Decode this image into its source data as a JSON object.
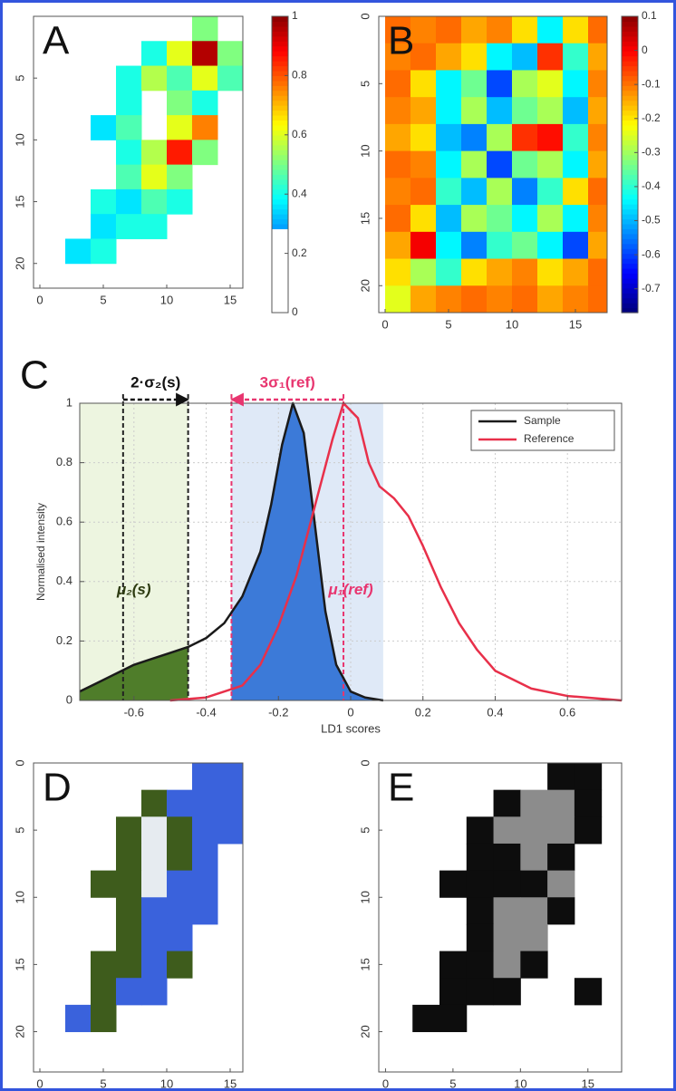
{
  "chart_data": [
    {
      "type": "heatmap",
      "label": "A",
      "colormap": "jet",
      "clim": [
        0,
        1
      ],
      "colorbar_ticks": [
        0,
        0.2,
        0.4,
        0.6,
        0.8,
        1
      ],
      "colorbar_white_below": 0.27,
      "x": [
        1,
        3,
        5,
        7,
        9,
        11,
        13,
        15,
        17
      ],
      "y": [
        1,
        3,
        5,
        7,
        9,
        11,
        13,
        15,
        17,
        19,
        21
      ],
      "xlim": [
        -0.5,
        16
      ],
      "ylim": [
        0,
        22
      ],
      "xticks": [
        0,
        5,
        10,
        15
      ],
      "yticks": [
        5,
        10,
        15,
        20
      ],
      "values": [
        [
          null,
          null,
          null,
          null,
          null,
          null,
          0.5,
          null,
          null
        ],
        [
          null,
          null,
          null,
          null,
          0.4,
          0.6,
          0.95,
          0.5,
          null
        ],
        [
          null,
          null,
          null,
          0.4,
          0.55,
          0.45,
          0.6,
          0.45,
          null
        ],
        [
          null,
          null,
          null,
          0.4,
          null,
          0.5,
          0.4,
          null,
          null
        ],
        [
          null,
          null,
          0.35,
          0.45,
          null,
          0.6,
          0.75,
          null,
          null
        ],
        [
          null,
          null,
          null,
          0.4,
          0.55,
          0.85,
          0.5,
          null,
          null
        ],
        [
          null,
          null,
          null,
          0.45,
          0.6,
          0.5,
          null,
          null,
          null
        ],
        [
          null,
          null,
          0.4,
          0.35,
          0.45,
          0.4,
          null,
          null,
          null
        ],
        [
          null,
          null,
          0.35,
          0.4,
          0.4,
          null,
          null,
          null,
          null
        ],
        [
          null,
          0.35,
          0.4,
          null,
          null,
          null,
          null,
          null,
          null
        ],
        [
          null,
          null,
          null,
          null,
          null,
          null,
          null,
          null,
          null
        ]
      ]
    },
    {
      "type": "heatmap",
      "label": "B",
      "colormap": "jet",
      "clim": [
        -0.77,
        0.1
      ],
      "colorbar_ticks": [
        -0.7,
        -0.6,
        -0.5,
        -0.4,
        -0.3,
        -0.2,
        -0.1,
        0,
        0.1
      ],
      "x": [
        1,
        3,
        5,
        7,
        9,
        11,
        13,
        15,
        17
      ],
      "y": [
        1,
        3,
        5,
        7,
        9,
        11,
        13,
        15,
        17,
        19,
        21
      ],
      "xlim": [
        -0.5,
        17.5
      ],
      "ylim": [
        0,
        22
      ],
      "xticks": [
        0,
        5,
        10,
        15
      ],
      "yticks": [
        0,
        5,
        10,
        15,
        20
      ],
      "values": [
        [
          -0.1,
          -0.12,
          -0.1,
          -0.15,
          -0.12,
          -0.2,
          -0.45,
          -0.2,
          -0.1
        ],
        [
          -0.12,
          -0.1,
          -0.15,
          -0.2,
          -0.45,
          -0.5,
          -0.05,
          -0.4,
          -0.15
        ],
        [
          -0.1,
          -0.2,
          -0.45,
          -0.35,
          -0.6,
          -0.3,
          -0.25,
          -0.45,
          -0.12
        ],
        [
          -0.12,
          -0.15,
          -0.45,
          -0.3,
          -0.5,
          -0.35,
          -0.3,
          -0.5,
          -0.15
        ],
        [
          -0.15,
          -0.2,
          -0.5,
          -0.55,
          -0.3,
          -0.05,
          -0.02,
          -0.4,
          -0.12
        ],
        [
          -0.1,
          -0.12,
          -0.45,
          -0.3,
          -0.6,
          -0.35,
          -0.3,
          -0.45,
          -0.15
        ],
        [
          -0.12,
          -0.1,
          -0.4,
          -0.5,
          -0.3,
          -0.55,
          -0.4,
          -0.2,
          -0.1
        ],
        [
          -0.1,
          -0.2,
          -0.5,
          -0.3,
          -0.35,
          -0.45,
          -0.3,
          -0.45,
          -0.12
        ],
        [
          -0.15,
          0,
          -0.45,
          -0.55,
          -0.4,
          -0.35,
          -0.45,
          -0.6,
          -0.15
        ],
        [
          -0.2,
          -0.3,
          -0.4,
          -0.2,
          -0.15,
          -0.12,
          -0.2,
          -0.15,
          -0.1
        ],
        [
          -0.25,
          -0.15,
          -0.12,
          -0.1,
          -0.12,
          -0.1,
          -0.15,
          -0.12,
          -0.1
        ]
      ]
    },
    {
      "type": "line",
      "label": "C",
      "xlabel": "LD1 scores",
      "ylabel": "Normalised intensity",
      "xlim": [
        -0.75,
        0.75
      ],
      "ylim": [
        0,
        1
      ],
      "xticks": [
        -0.6,
        -0.4,
        -0.2,
        0,
        0.2,
        0.4,
        0.6
      ],
      "yticks": [
        0,
        0.2,
        0.4,
        0.6,
        0.8,
        1
      ],
      "grid": true,
      "legend": "upper right",
      "regions": [
        {
          "from": -0.75,
          "to": -0.45,
          "color": "#edf5e0",
          "fill_color": "#4f7d2a"
        },
        {
          "from": -0.33,
          "to": 0.09,
          "color": "#dfe9f7",
          "fill_color": "#3c7ad8"
        }
      ],
      "reference_lines": [
        {
          "x": -0.63,
          "color": "#222222"
        },
        {
          "x": -0.45,
          "color": "#222222"
        },
        {
          "x": -0.33,
          "color": "#e8356f"
        },
        {
          "x": -0.02,
          "color": "#e8356f"
        }
      ],
      "arrows": [
        {
          "text": "2·σ₂(s)",
          "from": -0.63,
          "to": -0.45,
          "color": "#111111"
        },
        {
          "text": "3σ₁(ref)",
          "from": -0.02,
          "to": -0.33,
          "color": "#e8356f"
        }
      ],
      "annotations": [
        {
          "text": "μ₂(s)",
          "x": -0.6,
          "y": 0.37,
          "color": "#2c3a10"
        },
        {
          "text": "μ₁(ref)",
          "x": 0.0,
          "y": 0.37,
          "color": "#e8356f"
        }
      ],
      "series": [
        {
          "name": "Sample",
          "color": "#1a1a1a",
          "x": [
            -0.75,
            -0.7,
            -0.65,
            -0.6,
            -0.55,
            -0.5,
            -0.45,
            -0.4,
            -0.35,
            -0.3,
            -0.25,
            -0.22,
            -0.19,
            -0.16,
            -0.13,
            -0.1,
            -0.07,
            -0.04,
            0,
            0.04,
            0.09
          ],
          "values": [
            0.03,
            0.06,
            0.09,
            0.12,
            0.14,
            0.16,
            0.18,
            0.21,
            0.26,
            0.35,
            0.5,
            0.66,
            0.86,
            1.0,
            0.9,
            0.6,
            0.3,
            0.12,
            0.03,
            0.01,
            0
          ]
        },
        {
          "name": "Reference",
          "color": "#e8304a",
          "x": [
            -0.5,
            -0.4,
            -0.3,
            -0.25,
            -0.2,
            -0.15,
            -0.1,
            -0.05,
            -0.02,
            0.02,
            0.05,
            0.08,
            0.12,
            0.16,
            0.2,
            0.25,
            0.3,
            0.35,
            0.4,
            0.5,
            0.6,
            0.75
          ],
          "values": [
            0,
            0.01,
            0.05,
            0.12,
            0.25,
            0.42,
            0.65,
            0.88,
            1.0,
            0.95,
            0.8,
            0.72,
            0.68,
            0.62,
            0.52,
            0.38,
            0.26,
            0.17,
            0.1,
            0.04,
            0.015,
            0
          ]
        }
      ]
    },
    {
      "type": "heatmap",
      "label": "D",
      "palette": [
        "#3a62dc",
        "#3e5c1c",
        "#e6ebf0"
      ],
      "x": [
        1,
        3,
        5,
        7,
        9,
        11,
        13,
        15,
        17
      ],
      "y": [
        1,
        3,
        5,
        7,
        9,
        11,
        13,
        15,
        17,
        19,
        21
      ],
      "xlim": [
        -0.5,
        16
      ],
      "ylim": [
        0,
        23
      ],
      "xticks": [
        0,
        5,
        10,
        15
      ],
      "yticks": [
        0,
        5,
        10,
        15,
        20
      ],
      "values": [
        [
          null,
          null,
          null,
          null,
          null,
          null,
          0,
          0,
          null
        ],
        [
          null,
          null,
          null,
          null,
          1,
          0,
          0,
          0,
          null
        ],
        [
          null,
          null,
          null,
          1,
          2,
          1,
          0,
          0,
          null
        ],
        [
          null,
          null,
          null,
          1,
          2,
          1,
          0,
          null,
          null
        ],
        [
          null,
          null,
          1,
          1,
          2,
          0,
          0,
          null,
          null
        ],
        [
          null,
          null,
          null,
          1,
          0,
          0,
          0,
          null,
          null
        ],
        [
          null,
          null,
          null,
          1,
          0,
          0,
          null,
          null,
          null
        ],
        [
          null,
          null,
          1,
          1,
          0,
          1,
          null,
          null,
          null
        ],
        [
          null,
          null,
          1,
          0,
          0,
          null,
          null,
          null,
          null
        ],
        [
          null,
          0,
          1,
          null,
          null,
          null,
          null,
          null,
          null
        ],
        [
          null,
          null,
          null,
          null,
          null,
          null,
          null,
          null,
          null
        ]
      ]
    },
    {
      "type": "heatmap",
      "label": "E",
      "palette": [
        "#0d0d0d",
        "#8c8c8c"
      ],
      "x": [
        1,
        3,
        5,
        7,
        9,
        11,
        13,
        15,
        17
      ],
      "y": [
        1,
        3,
        5,
        7,
        9,
        11,
        13,
        15,
        17,
        19,
        21
      ],
      "xlim": [
        -0.5,
        17.5
      ],
      "ylim": [
        0,
        23
      ],
      "xticks": [
        0,
        5,
        10,
        15
      ],
      "yticks": [
        0,
        5,
        10,
        15,
        20
      ],
      "values": [
        [
          null,
          null,
          null,
          null,
          null,
          null,
          0,
          0,
          null
        ],
        [
          null,
          null,
          null,
          null,
          0,
          1,
          1,
          0,
          null
        ],
        [
          null,
          null,
          null,
          0,
          1,
          1,
          1,
          0,
          null
        ],
        [
          null,
          null,
          null,
          0,
          0,
          1,
          0,
          null,
          null
        ],
        [
          null,
          null,
          0,
          0,
          0,
          0,
          1,
          null,
          null
        ],
        [
          null,
          null,
          null,
          0,
          1,
          1,
          0,
          null,
          null
        ],
        [
          null,
          null,
          null,
          0,
          1,
          1,
          null,
          null,
          null
        ],
        [
          null,
          null,
          0,
          0,
          1,
          0,
          null,
          null,
          null
        ],
        [
          null,
          null,
          0,
          0,
          0,
          null,
          null,
          0,
          null
        ],
        [
          null,
          0,
          0,
          null,
          null,
          null,
          null,
          null,
          null
        ],
        [
          null,
          null,
          null,
          null,
          null,
          null,
          null,
          null,
          null
        ]
      ]
    }
  ]
}
